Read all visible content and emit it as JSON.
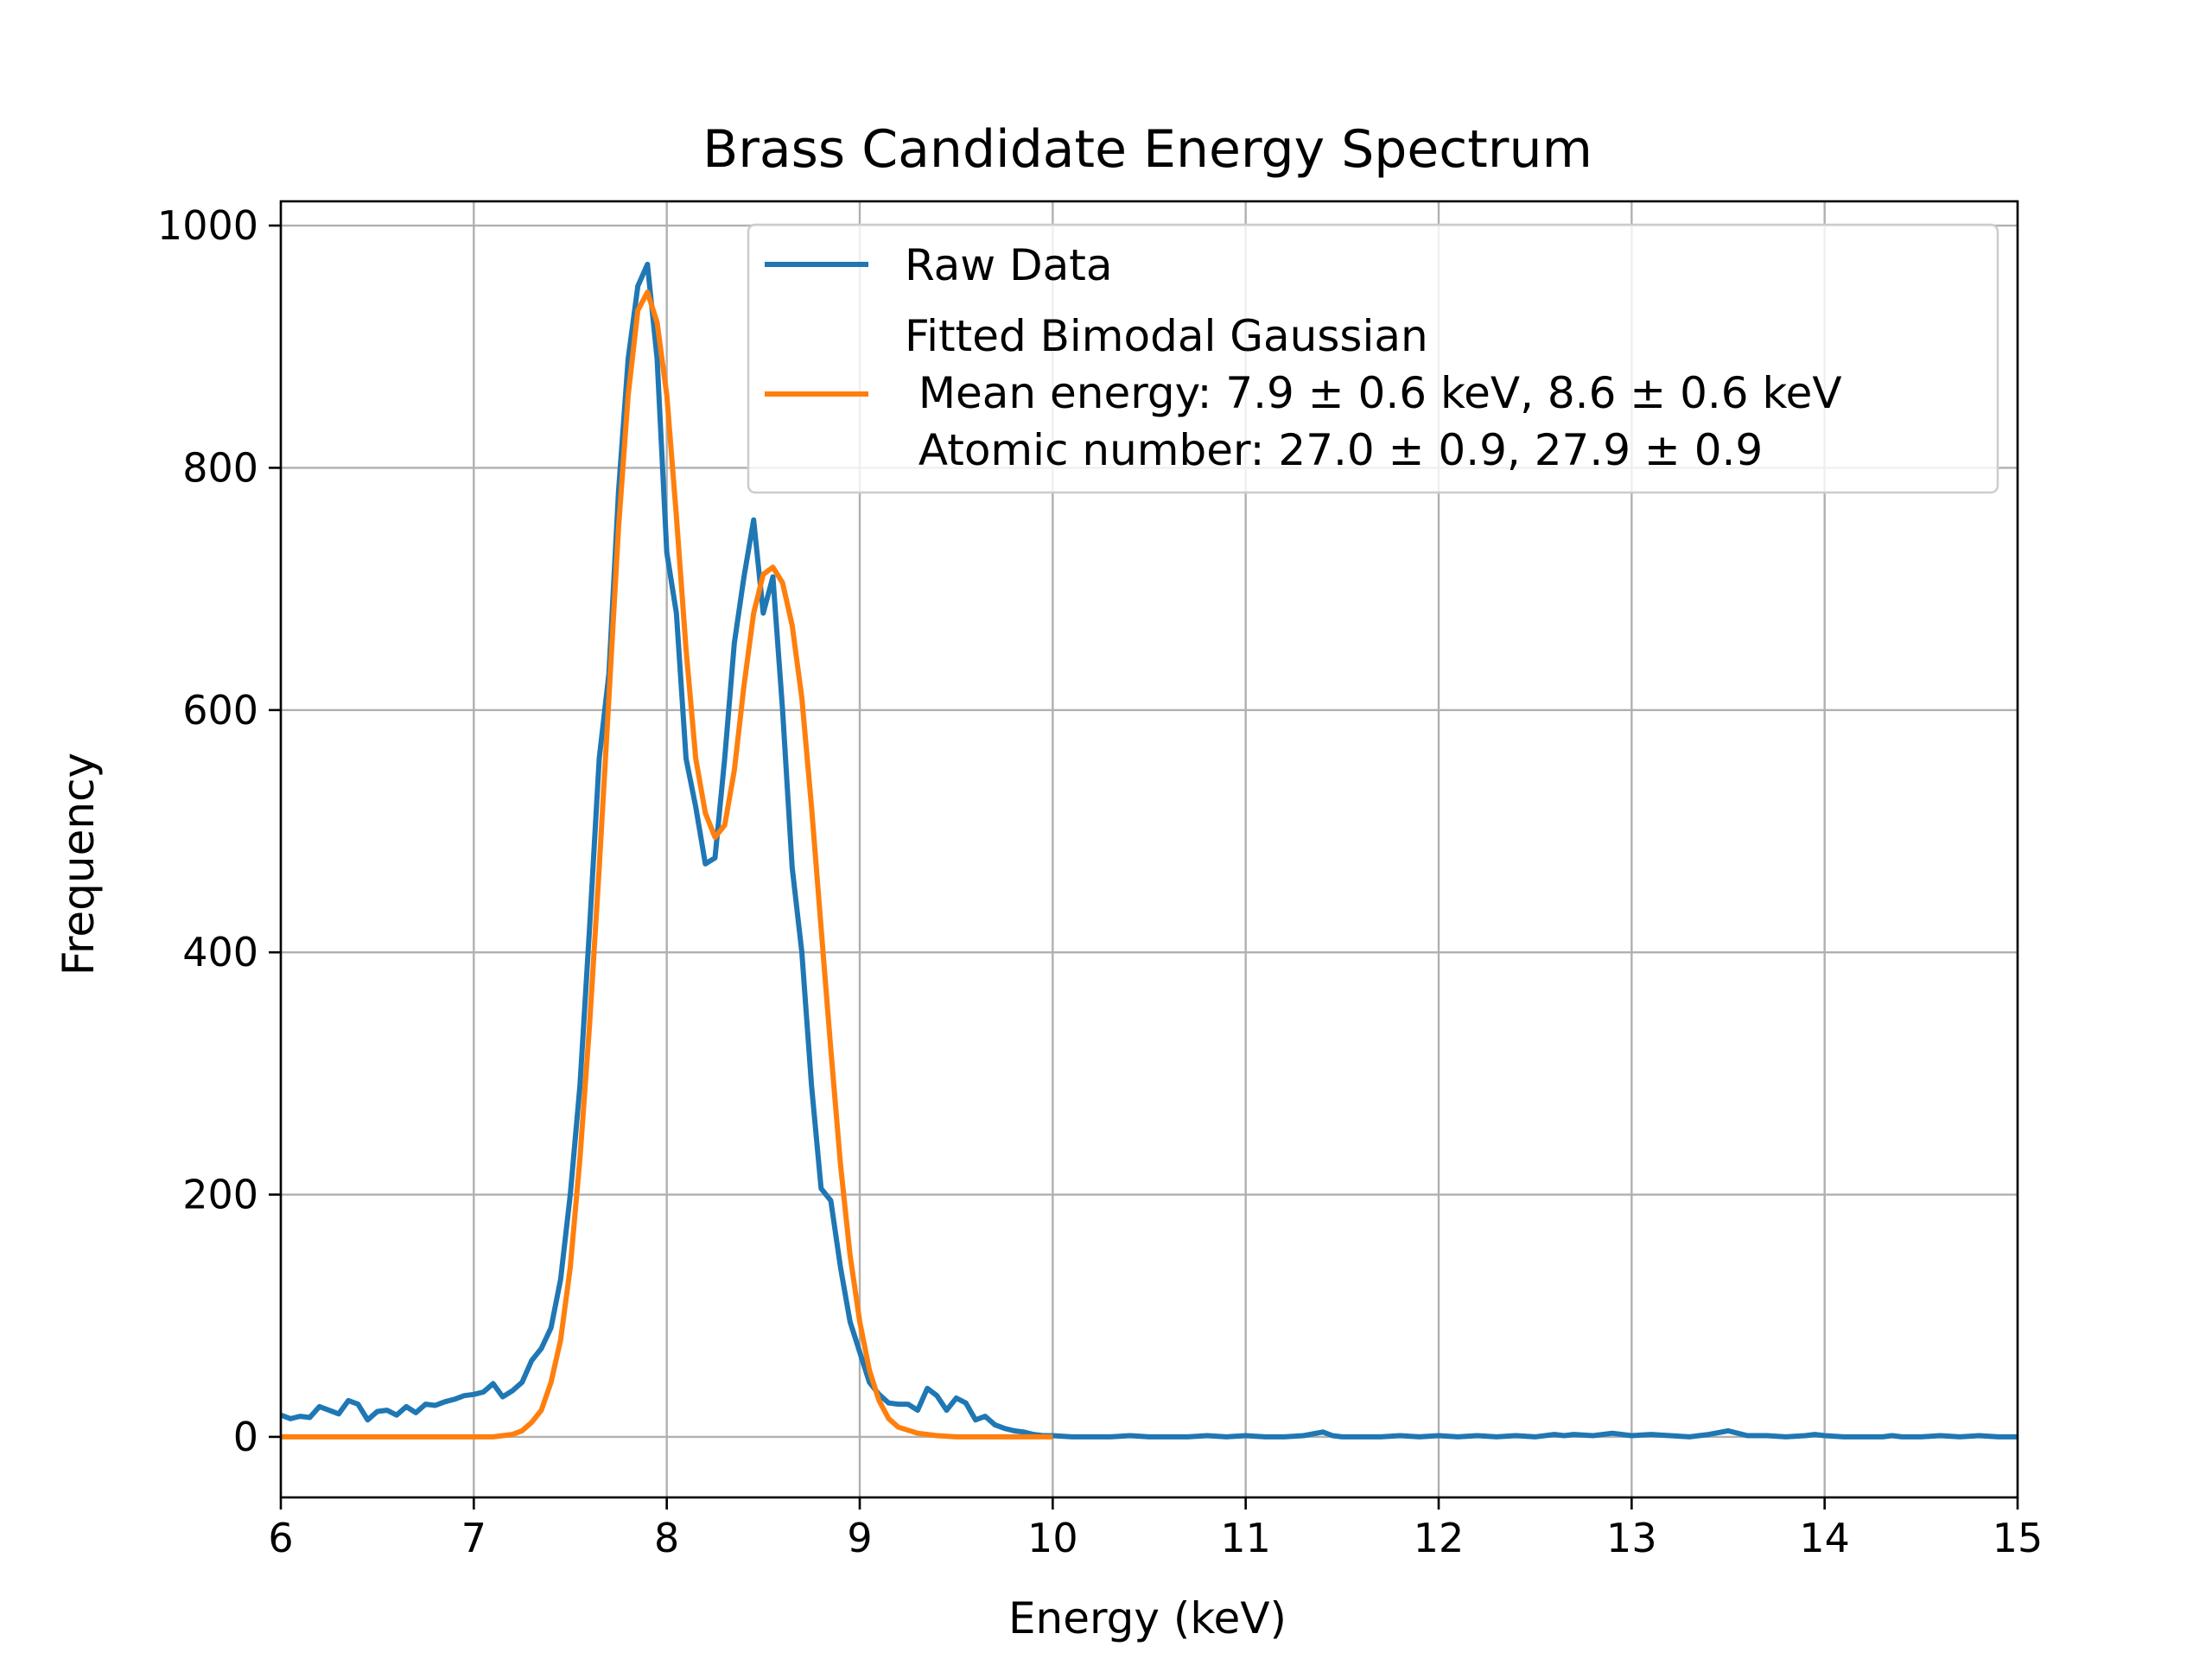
{
  "colors": {
    "raw": "#1f77b4",
    "fit": "#ff7f0e"
  },
  "chart_data": {
    "type": "line",
    "title": "Brass Candidate Energy Spectrum",
    "xlabel": "Energy (keV)",
    "ylabel": "Frequency",
    "xlim": [
      6,
      15
    ],
    "ylim": [
      -50,
      1020
    ],
    "xticks": [
      6,
      7,
      8,
      9,
      10,
      11,
      12,
      13,
      14,
      15
    ],
    "yticks": [
      0,
      200,
      400,
      600,
      800,
      1000
    ],
    "grid": true,
    "legend_position": "top-right",
    "legend": {
      "raw": "Raw Data",
      "fit_lines": [
        "Fitted Bimodal Gaussian",
        " Mean energy: 7.9 ± 0.6 keV, 8.6 ± 0.6 keV",
        " Atomic number: 27.0 ± 0.9, 27.9 ± 0.9"
      ]
    },
    "series": [
      {
        "name": "Raw Data",
        "x": [
          6.0,
          6.05,
          6.1,
          6.15,
          6.2,
          6.25,
          6.3,
          6.35,
          6.4,
          6.45,
          6.5,
          6.55,
          6.6,
          6.65,
          6.7,
          6.75,
          6.8,
          6.85,
          6.9,
          6.95,
          7.0,
          7.05,
          7.1,
          7.15,
          7.2,
          7.25,
          7.3,
          7.35,
          7.4,
          7.45,
          7.5,
          7.55,
          7.6,
          7.65,
          7.7,
          7.75,
          7.8,
          7.85,
          7.9,
          7.95,
          8.0,
          8.05,
          8.1,
          8.15,
          8.2,
          8.25,
          8.3,
          8.35,
          8.4,
          8.45,
          8.5,
          8.55,
          8.6,
          8.65,
          8.7,
          8.75,
          8.8,
          8.85,
          8.9,
          8.95,
          9.0,
          9.05,
          9.1,
          9.15,
          9.2,
          9.25,
          9.3,
          9.35,
          9.4,
          9.45,
          9.5,
          9.55,
          9.6,
          9.65,
          9.7,
          9.75,
          9.8,
          9.85,
          9.9,
          9.95,
          10.0,
          10.1,
          10.2,
          10.3,
          10.4,
          10.5,
          10.6,
          10.7,
          10.8,
          10.9,
          11.0,
          11.1,
          11.2,
          11.3,
          11.4,
          11.45,
          11.5,
          11.6,
          11.7,
          11.8,
          11.9,
          12.0,
          12.1,
          12.2,
          12.3,
          12.4,
          12.5,
          12.6,
          12.65,
          12.7,
          12.8,
          12.9,
          13.0,
          13.1,
          13.2,
          13.3,
          13.4,
          13.5,
          13.6,
          13.7,
          13.8,
          13.9,
          13.95,
          14.0,
          14.1,
          14.2,
          14.3,
          14.35,
          14.4,
          14.5,
          14.6,
          14.7,
          14.8,
          14.9,
          15.0
        ],
        "y": [
          18,
          15,
          17,
          16,
          25,
          22,
          19,
          30,
          27,
          14,
          21,
          22,
          18,
          25,
          20,
          27,
          26,
          29,
          31,
          34,
          35,
          37,
          44,
          33,
          38,
          45,
          63,
          73,
          90,
          130,
          200,
          290,
          420,
          560,
          630,
          780,
          890,
          950,
          968,
          890,
          730,
          680,
          560,
          520,
          473,
          478,
          560,
          655,
          710,
          757,
          680,
          710,
          600,
          470,
          400,
          290,
          205,
          195,
          140,
          95,
          70,
          45,
          35,
          28,
          27,
          27,
          22,
          40,
          34,
          22,
          32,
          28,
          14,
          17,
          10,
          7,
          5,
          4,
          2,
          1,
          1,
          0,
          0,
          0,
          1,
          0,
          0,
          0,
          1,
          0,
          1,
          0,
          0,
          1,
          4,
          1,
          0,
          0,
          0,
          1,
          0,
          1,
          0,
          1,
          0,
          1,
          0,
          2,
          1,
          2,
          1,
          3,
          1,
          2,
          1,
          0,
          2,
          5,
          1,
          1,
          0,
          1,
          2,
          1,
          0,
          0,
          0,
          1,
          0,
          0,
          1,
          0,
          1,
          0,
          0
        ]
      },
      {
        "name": "Fitted Bimodal Gaussian",
        "x": [
          6.0,
          6.2,
          6.4,
          6.6,
          6.8,
          7.0,
          7.1,
          7.2,
          7.25,
          7.3,
          7.35,
          7.4,
          7.45,
          7.5,
          7.55,
          7.6,
          7.65,
          7.7,
          7.75,
          7.8,
          7.85,
          7.9,
          7.95,
          8.0,
          8.05,
          8.1,
          8.15,
          8.2,
          8.25,
          8.3,
          8.35,
          8.4,
          8.45,
          8.5,
          8.55,
          8.6,
          8.65,
          8.7,
          8.75,
          8.8,
          8.85,
          8.9,
          8.95,
          9.0,
          9.05,
          9.1,
          9.15,
          9.2,
          9.3,
          9.4,
          9.5,
          9.6,
          9.8,
          10.0
        ],
        "y": [
          0,
          0,
          0,
          0,
          0,
          0,
          0,
          2,
          5,
          12,
          22,
          45,
          80,
          140,
          230,
          340,
          470,
          610,
          750,
          860,
          930,
          945,
          920,
          860,
          760,
          650,
          560,
          515,
          495,
          505,
          550,
          620,
          680,
          712,
          718,
          705,
          670,
          610,
          520,
          420,
          320,
          225,
          150,
          95,
          55,
          30,
          15,
          8,
          3,
          1,
          0,
          0,
          0,
          0
        ]
      }
    ]
  }
}
